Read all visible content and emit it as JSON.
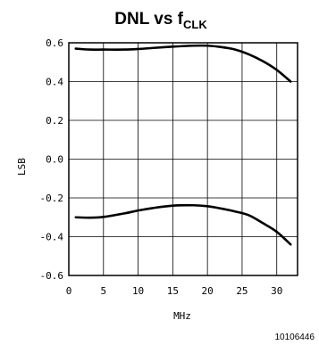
{
  "chart_data": {
    "type": "line",
    "title": "DNL vs f",
    "title_subscript": "CLK",
    "xlabel": "MHz",
    "ylabel": "LSB",
    "xlim": [
      0,
      33
    ],
    "ylim": [
      -0.6,
      0.6
    ],
    "xticks": [
      0,
      5,
      10,
      15,
      20,
      25,
      30
    ],
    "xtick_labels": [
      "0",
      "5",
      "10",
      "15",
      "20",
      "25",
      "30"
    ],
    "yticks": [
      0.6,
      0.4,
      0.2,
      0.0,
      -0.2,
      -0.4,
      -0.6
    ],
    "ytick_labels": [
      "0.6",
      "0.4",
      "0.2",
      "0.0",
      "-0.2",
      "-0.4",
      "-0.6"
    ],
    "grid": true,
    "series": [
      {
        "x": [
          1,
          3,
          5,
          8,
          10,
          12,
          15,
          18,
          20,
          22,
          24,
          26,
          28,
          30,
          32
        ],
        "y": [
          0.57,
          0.565,
          0.565,
          0.565,
          0.568,
          0.573,
          0.58,
          0.585,
          0.585,
          0.578,
          0.565,
          0.54,
          0.505,
          0.46,
          0.4
        ]
      },
      {
        "x": [
          1,
          3,
          5,
          8,
          10,
          12,
          15,
          18,
          20,
          22,
          24,
          26,
          28,
          30,
          32
        ],
        "y": [
          -0.3,
          -0.302,
          -0.298,
          -0.28,
          -0.265,
          -0.253,
          -0.24,
          -0.238,
          -0.243,
          -0.255,
          -0.27,
          -0.29,
          -0.33,
          -0.375,
          -0.44
        ]
      }
    ]
  },
  "figure_code": "10106446"
}
